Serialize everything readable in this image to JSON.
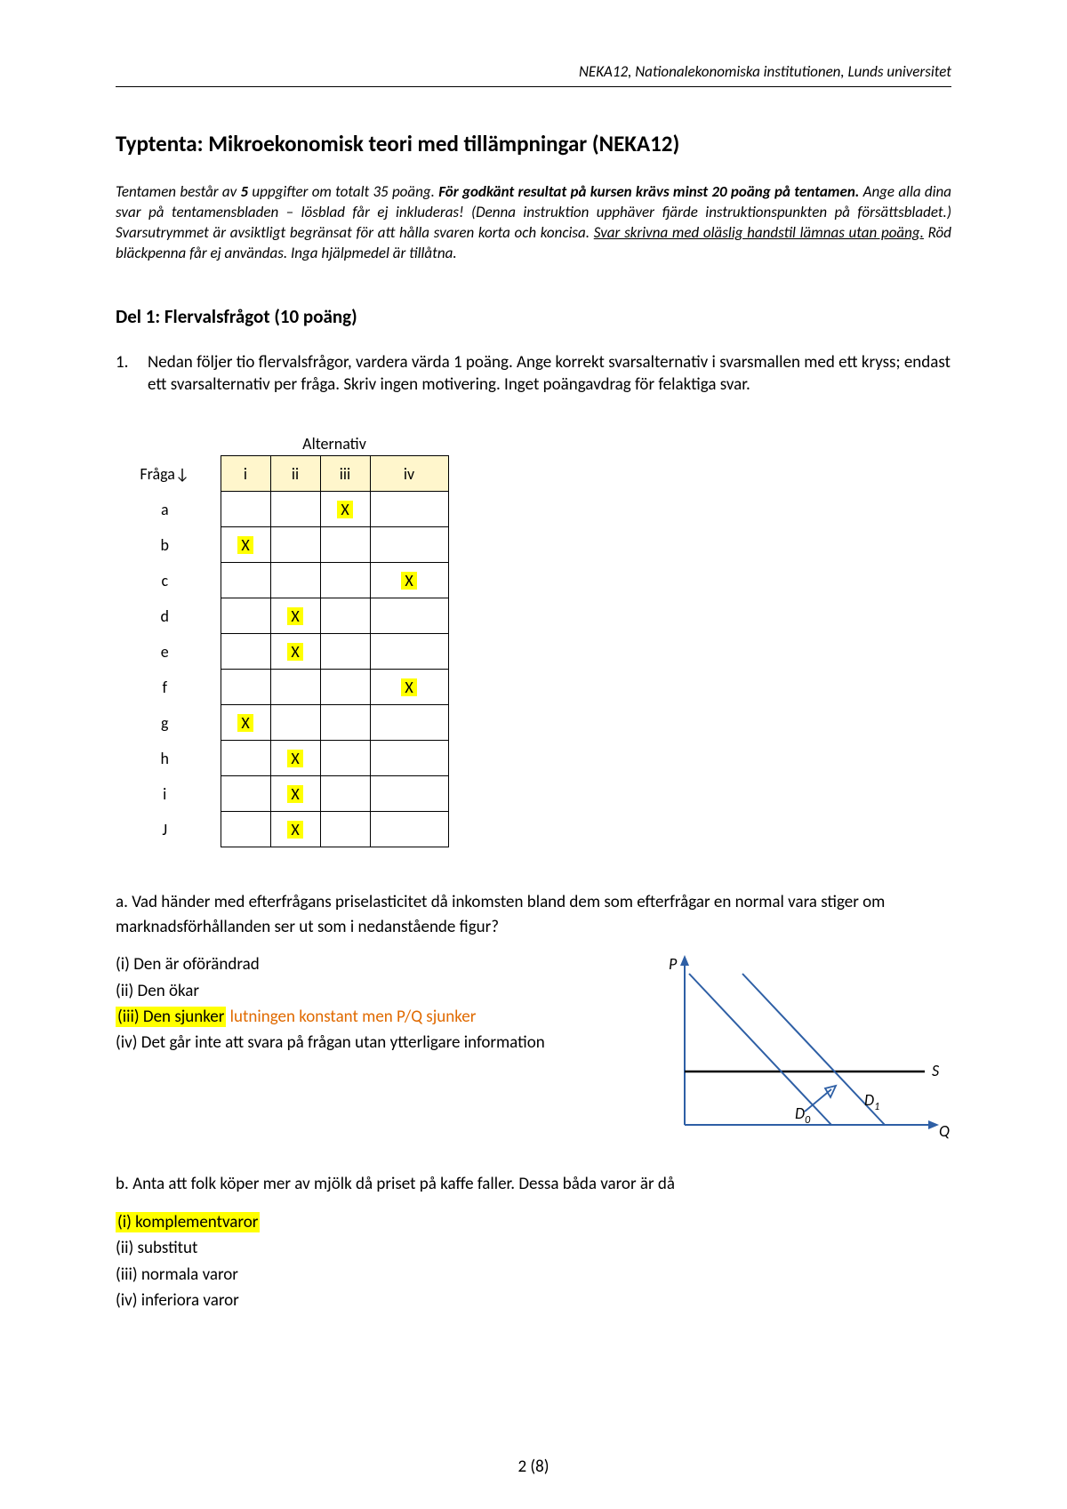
{
  "header": "NEKA12, Nationalekonomiska institutionen, Lunds universitet",
  "title": "Typtenta: Mikroekonomisk teori med tillämpningar (NEKA12)",
  "intro": {
    "p1a": "Tentamen består av ",
    "p1b": "5",
    "p1c": " uppgifter om totalt 35 poäng. ",
    "p1d": "För godkänt resultat på kursen krävs minst 20 poäng på tentamen.",
    "p1e": " Ange alla dina svar på tentamensbladen – lösblad får ej inkluderas! (Denna instruktion upphäver fjärde instruktionspunkten på försättsbladet.) Svarsutrymmet är avsiktligt begränsat för att hålla svaren korta och koncisa. ",
    "p1f": "Svar skrivna med oläslig handstil lämnas utan poäng.",
    "p1g": " Röd bläckpenna får ej användas. Inga hjälpmedel är tillåtna."
  },
  "section1": "Del 1: Flervalsfrågot (10 poäng)",
  "q1": {
    "num": "1.",
    "text": "Nedan följer tio flervalsfrågor, vardera värda 1 poäng. Ange korrekt svarsalternativ i svarsmallen med ett kryss; endast ett svarsalternativ per fråga. Skriv ingen motivering. Inget poängavdrag för felaktiga svar."
  },
  "table": {
    "alt_label": "Alternativ",
    "row_header": "Fråga↓",
    "cols": [
      "i",
      "ii",
      "iii",
      "iv"
    ],
    "rows": [
      "a",
      "b",
      "c",
      "d",
      "e",
      "f",
      "g",
      "h",
      "i",
      "J"
    ],
    "marks": {
      "a": 2,
      "b": 0,
      "c": 3,
      "d": 1,
      "e": 1,
      "f": 3,
      "g": 0,
      "h": 1,
      "i": 1,
      "J": 1
    },
    "mark_char": "X",
    "header_bg": "#fff6cc",
    "highlight_bg": "#ffff00"
  },
  "qa": {
    "prompt": "a. Vad händer med efterfrågans priselasticitet då inkomsten bland dem som efterfrågar en normal vara stiger om marknadsförhållanden ser ut som i nedanstående figur?",
    "opts": [
      {
        "label": "(i)",
        "text": "Den är oförändrad",
        "hl": false
      },
      {
        "label": "(ii)",
        "text": "Den ökar",
        "hl": false
      },
      {
        "label": "(iii)",
        "text": "Den sjunker",
        "extra": "lutningen konstant men P/Q sjunker",
        "hl": true
      },
      {
        "label": "(iv)",
        "text": "Det går inte att svara på frågan utan ytterligare information",
        "hl": false
      }
    ]
  },
  "chart": {
    "axis_color": "#2e5fa5",
    "line_color": "#2e5fa5",
    "supply_color": "#000000",
    "labels": {
      "P": "P",
      "Q": "Q",
      "S": "S",
      "D0": "D",
      "D0sub": "0",
      "D1": "D",
      "D1sub": "1"
    }
  },
  "qb": {
    "prompt": "b. Anta att folk köper mer av mjölk då priset på kaffe faller. Dessa båda varor är då",
    "opts": [
      {
        "label": "(i)",
        "text": "komplementvaror",
        "hl": true
      },
      {
        "label": "(ii)",
        "text": "substitut",
        "hl": false
      },
      {
        "label": "(iii)",
        "text": "normala varor",
        "hl": false
      },
      {
        "label": "(iv)",
        "text": "inferiora varor",
        "hl": false
      }
    ]
  },
  "page_num": "2 (8)"
}
